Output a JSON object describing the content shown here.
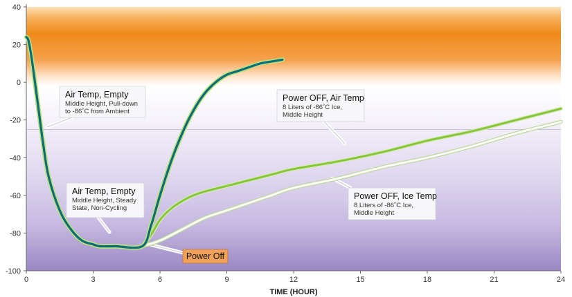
{
  "chart_data": {
    "type": "line",
    "xlabel": "TIME (HOUR)",
    "ylabel": "",
    "title": "",
    "xlim": [
      0,
      24
    ],
    "ylim": [
      -100,
      40
    ],
    "x_ticks": [
      0,
      3,
      6,
      9,
      12,
      15,
      18,
      21,
      24
    ],
    "y_ticks": [
      40,
      20,
      0,
      -20,
      -40,
      -60,
      -80,
      -100
    ],
    "grid": "horizontal reference lines at -25 and -86",
    "background": "gradient: orange band around +20 to +40 fading to white near 0, purple increasing toward -100",
    "colors": {
      "air_temp_empty": "#0d6b7a",
      "air_temp_empty_glow": "#b9e27a",
      "power_off_air": "#86c53c",
      "power_off_ice": "#ffffff",
      "orange_band": "#f08a1a",
      "purple_base": "#9a87c4",
      "power_off_label": "#f0a25a"
    },
    "series": [
      {
        "key": "air_temp_empty",
        "x": [
          0,
          0.1,
          0.25,
          0.5,
          0.75,
          1,
          1.5,
          2,
          2.5,
          3,
          3.3,
          4,
          5.2,
          5.6,
          6,
          6.5,
          7,
          7.5,
          8,
          8.5,
          9,
          9.5,
          10,
          10.5,
          11,
          11.5
        ],
        "y": [
          24,
          22,
          12,
          -10,
          -32,
          -50,
          -68,
          -78,
          -84,
          -86,
          -87,
          -87,
          -87,
          -76,
          -60,
          -42,
          -27,
          -15,
          -6,
          0,
          4,
          6,
          8,
          10,
          11,
          12
        ]
      },
      {
        "key": "power_off_air",
        "x": [
          5.2,
          5.6,
          6,
          6.5,
          7,
          7.5,
          8,
          9,
          10,
          11,
          12,
          14,
          16,
          18,
          20,
          22,
          24
        ],
        "y": [
          -87,
          -81,
          -73,
          -67,
          -63,
          -60,
          -58,
          -55,
          -52,
          -49,
          -46,
          -42,
          -37,
          -31,
          -26,
          -20,
          -14
        ]
      },
      {
        "key": "power_off_ice",
        "x": [
          5.2,
          6,
          7,
          8,
          9,
          10,
          11,
          12,
          14,
          16,
          18,
          20,
          22,
          24
        ],
        "y": [
          -87,
          -84,
          -78,
          -72,
          -68,
          -64,
          -60,
          -56,
          -51,
          -45,
          -40,
          -34,
          -27,
          -21
        ]
      }
    ],
    "annotations": [
      {
        "key": "ann1",
        "title": "Air Temp, Empty",
        "lines": [
          "Middle Height, Pull-down",
          "to -86˚C from Ambient"
        ]
      },
      {
        "key": "ann2",
        "title": "Air Temp, Empty",
        "lines": [
          "Middle Height, Steady",
          "State, Non-Cycling"
        ]
      },
      {
        "key": "ann3",
        "title": "Power OFF, Air Temp",
        "lines": [
          "8 Liters of -86˚C Ice,",
          "Middle Height"
        ]
      },
      {
        "key": "ann4",
        "title": "Power OFF, Ice Temp",
        "lines": [
          "8 Liters of -86˚C Ice,",
          "Middle Height"
        ]
      },
      {
        "key": "ann5",
        "title": "Power Off",
        "lines": []
      }
    ]
  }
}
